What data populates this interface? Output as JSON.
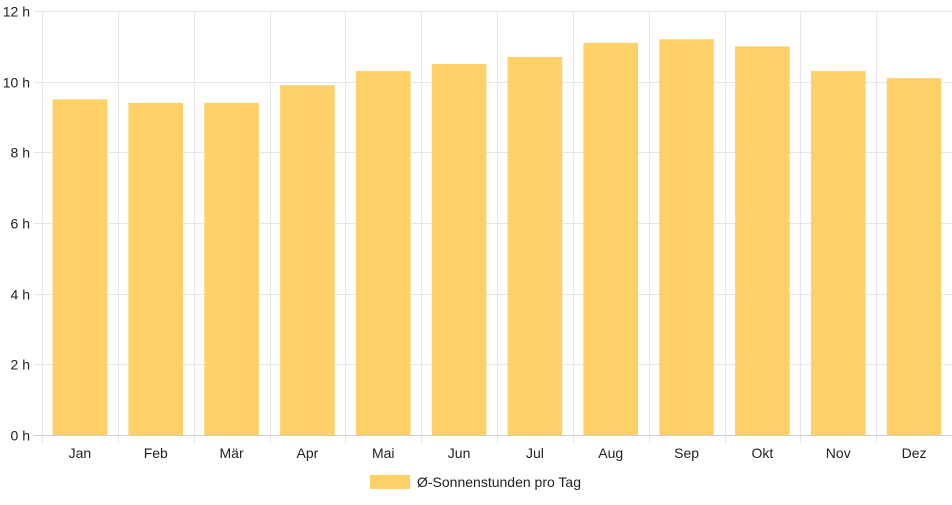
{
  "chart_data": {
    "type": "bar",
    "title": "",
    "xlabel": "",
    "ylabel": "",
    "categories": [
      "Jan",
      "Feb",
      "Mär",
      "Apr",
      "Mai",
      "Jun",
      "Jul",
      "Aug",
      "Sep",
      "Okt",
      "Nov",
      "Dez"
    ],
    "series": [
      {
        "name": "Ø-Sonnenstunden pro Tag",
        "values": [
          9.5,
          9.4,
          9.4,
          9.9,
          10.3,
          10.5,
          10.7,
          11.1,
          11.2,
          11.0,
          10.3,
          10.1
        ],
        "color": "#fdd167"
      }
    ],
    "ylim": [
      0,
      12
    ],
    "y_ticks": [
      0,
      2,
      4,
      6,
      8,
      10,
      12
    ],
    "y_tick_labels": [
      "0 h",
      "2 h",
      "4 h",
      "6 h",
      "8 h",
      "10 h",
      "12 h"
    ],
    "grid": true,
    "legend": "bottom-center"
  }
}
